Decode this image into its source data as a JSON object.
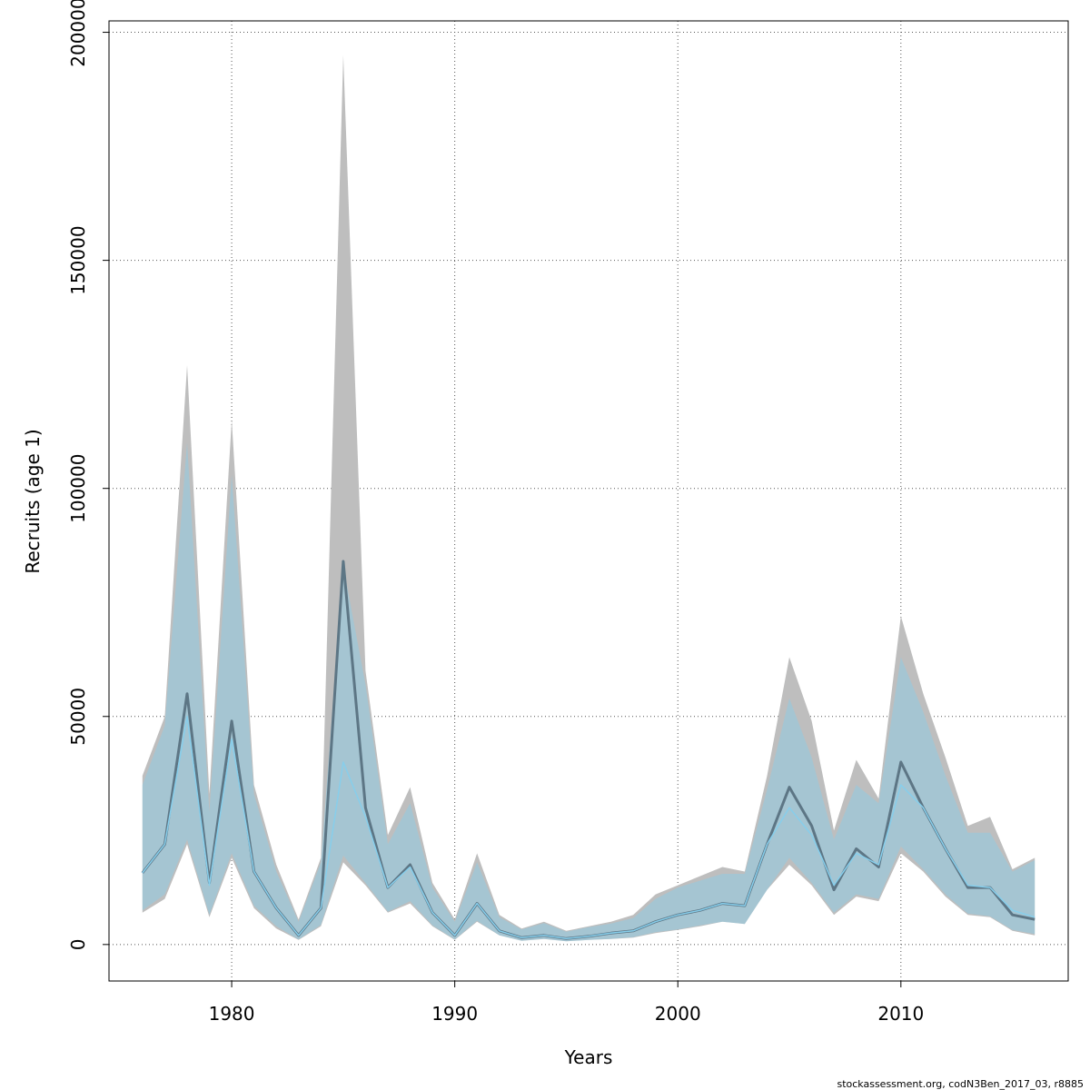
{
  "chart_data": {
    "type": "area",
    "xlabel": "Years",
    "ylabel": "Recruits (age 1)",
    "caption": "stockassessment.org, codN3Ben_2017_03, r8885",
    "xlim": [
      1974.5,
      2017.5
    ],
    "ylim": [
      -8000,
      202500
    ],
    "xticks": [
      1980,
      1990,
      2000,
      2010
    ],
    "yticks": [
      0,
      50000,
      100000,
      150000,
      200000
    ],
    "grid": true,
    "colors": {
      "grey_band": "#bebebe",
      "grey_line": "#5d7685",
      "blue_band": "#87ceeb",
      "blue_band_opacity": 0.45,
      "blue_line": "#87ceeb"
    },
    "x": [
      1976,
      1977,
      1978,
      1979,
      1980,
      1981,
      1982,
      1983,
      1984,
      1985,
      1986,
      1987,
      1988,
      1989,
      1990,
      1991,
      1992,
      1993,
      1994,
      1995,
      1996,
      1997,
      1998,
      1999,
      2000,
      2001,
      2002,
      2003,
      2004,
      2005,
      2006,
      2007,
      2008,
      2009,
      2010,
      2011,
      2012,
      2013,
      2014,
      2015,
      2016
    ],
    "series": [
      {
        "estimate": [
          15700,
          22000,
          55000,
          13500,
          49000,
          16000,
          8000,
          2000,
          8000,
          84000,
          30000,
          12500,
          17500,
          7000,
          2000,
          9000,
          3000,
          1500,
          2000,
          1300,
          1800,
          2500,
          3000,
          5000,
          6500,
          7500,
          9000,
          8500,
          22000,
          34500,
          26000,
          12000,
          21000,
          17000,
          40000,
          30000,
          21000,
          12500,
          12500,
          6500,
          5500
        ],
        "lower": [
          7000,
          10000,
          22000,
          6000,
          19000,
          8000,
          3500,
          1000,
          4000,
          18000,
          13000,
          7000,
          9000,
          4000,
          1000,
          5000,
          2000,
          800,
          1200,
          700,
          1000,
          1200,
          1500,
          2500,
          3200,
          4000,
          5000,
          4500,
          12000,
          17500,
          13000,
          6500,
          10500,
          9500,
          20000,
          16000,
          10500,
          6500,
          6000,
          3000,
          2000
        ],
        "upper": [
          37000,
          50000,
          127000,
          33000,
          115000,
          35000,
          17500,
          5500,
          19000,
          195000,
          60000,
          24000,
          34500,
          13500,
          5500,
          20000,
          6500,
          3500,
          5000,
          3000,
          4000,
          5000,
          6500,
          11000,
          13000,
          15000,
          17000,
          16000,
          37000,
          63000,
          49000,
          25000,
          40500,
          32000,
          72000,
          55000,
          41000,
          26000,
          28000,
          16500,
          19000
        ]
      },
      {
        "estimate": [
          15700,
          22000,
          50000,
          13000,
          45000,
          16000,
          8000,
          2000,
          8000,
          40000,
          28000,
          12500,
          17000,
          7000,
          2000,
          9000,
          3000,
          1500,
          2000,
          1300,
          1800,
          2500,
          3000,
          5000,
          6500,
          7500,
          9000,
          8500,
          22000,
          30000,
          24000,
          13000,
          20000,
          17500,
          35000,
          30000,
          21000,
          13000,
          12500,
          7500,
          6000
        ],
        "lower": [
          7500,
          11000,
          23000,
          6500,
          20000,
          8500,
          4000,
          1100,
          4300,
          19500,
          13500,
          7200,
          9500,
          4200,
          1100,
          5200,
          2000,
          850,
          1250,
          700,
          1000,
          1250,
          1600,
          2700,
          3300,
          4200,
          5000,
          4500,
          12000,
          19000,
          13500,
          7000,
          11000,
          10000,
          21500,
          16500,
          11000,
          6800,
          6200,
          3200,
          2300
        ],
        "upper": [
          35000,
          48000,
          110000,
          29000,
          103000,
          33000,
          16000,
          5000,
          18000,
          83000,
          57000,
          22000,
          31000,
          12500,
          5000,
          18000,
          6000,
          3300,
          4700,
          2800,
          3800,
          4600,
          5800,
          10000,
          12500,
          14000,
          15500,
          15500,
          34000,
          54000,
          41000,
          23000,
          35000,
          31000,
          63000,
          51000,
          37000,
          24500,
          24500,
          16000,
          18500
        ]
      }
    ]
  }
}
